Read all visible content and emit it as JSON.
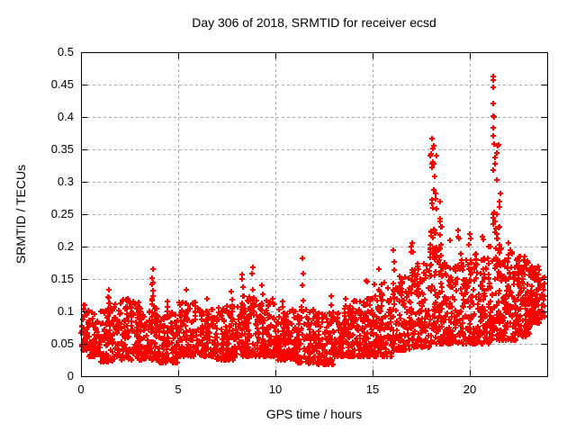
{
  "window_title": "Day 306 of 2018, SRMTID for receiver ecsd",
  "chart_data": {
    "type": "scatter",
    "title": "Day 306 of 2018, SRMTID for receiver ecsd",
    "xlabel": "GPS time / hours",
    "ylabel": "SRMTID / TECUs",
    "xlim": [
      0,
      24
    ],
    "ylim": [
      0,
      0.5
    ],
    "xticks": [
      {
        "v": 0,
        "label": "0"
      },
      {
        "v": 5,
        "label": "5"
      },
      {
        "v": 10,
        "label": "10"
      },
      {
        "v": 15,
        "label": "15"
      },
      {
        "v": 20,
        "label": "20"
      }
    ],
    "yticks": [
      {
        "v": 0,
        "label": "0"
      },
      {
        "v": 0.05,
        "label": "0.05"
      },
      {
        "v": 0.1,
        "label": "0.1"
      },
      {
        "v": 0.15,
        "label": "0.15"
      },
      {
        "v": 0.2,
        "label": "0.2"
      },
      {
        "v": 0.25,
        "label": "0.25"
      },
      {
        "v": 0.3,
        "label": "0.3"
      },
      {
        "v": 0.35,
        "label": "0.35"
      },
      {
        "v": 0.4,
        "label": "0.4"
      },
      {
        "v": 0.45,
        "label": "0.45"
      },
      {
        "v": 0.5,
        "label": "0.5"
      }
    ],
    "grid": true,
    "legend": "none",
    "marker": "plus",
    "marker_color": "#ff0000",
    "grid_color": "#ababab",
    "frame_color": "#000000",
    "background_color": "#ffffff",
    "seed": 3062018,
    "envelope": [
      {
        "x0": 0.0,
        "x1": 0.35,
        "lo": 0.04,
        "hi": 0.115,
        "n": 45
      },
      {
        "x0": 0.35,
        "x1": 1.0,
        "lo": 0.03,
        "hi": 0.1,
        "n": 70
      },
      {
        "x0": 1.0,
        "x1": 2.0,
        "lo": 0.022,
        "hi": 0.115,
        "n": 115
      },
      {
        "x0": 2.0,
        "x1": 3.0,
        "lo": 0.025,
        "hi": 0.12,
        "n": 115
      },
      {
        "x0": 3.0,
        "x1": 4.0,
        "lo": 0.025,
        "hi": 0.11,
        "n": 115
      },
      {
        "x0": 4.0,
        "x1": 5.0,
        "lo": 0.02,
        "hi": 0.1,
        "n": 115
      },
      {
        "x0": 5.0,
        "x1": 6.0,
        "lo": 0.03,
        "hi": 0.115,
        "n": 115
      },
      {
        "x0": 6.0,
        "x1": 7.0,
        "lo": 0.03,
        "hi": 0.105,
        "n": 115
      },
      {
        "x0": 7.0,
        "x1": 8.0,
        "lo": 0.025,
        "hi": 0.11,
        "n": 115
      },
      {
        "x0": 8.0,
        "x1": 9.0,
        "lo": 0.03,
        "hi": 0.125,
        "n": 115
      },
      {
        "x0": 9.0,
        "x1": 10.0,
        "lo": 0.03,
        "hi": 0.12,
        "n": 115
      },
      {
        "x0": 10.0,
        "x1": 11.0,
        "lo": 0.025,
        "hi": 0.105,
        "n": 115
      },
      {
        "x0": 11.0,
        "x1": 12.0,
        "lo": 0.02,
        "hi": 0.105,
        "n": 115
      },
      {
        "x0": 12.0,
        "x1": 13.0,
        "lo": 0.018,
        "hi": 0.1,
        "n": 115
      },
      {
        "x0": 13.0,
        "x1": 14.0,
        "lo": 0.03,
        "hi": 0.11,
        "n": 115
      },
      {
        "x0": 14.0,
        "x1": 15.0,
        "lo": 0.03,
        "hi": 0.12,
        "n": 115
      },
      {
        "x0": 15.0,
        "x1": 16.0,
        "lo": 0.03,
        "hi": 0.145,
        "n": 120
      },
      {
        "x0": 16.0,
        "x1": 17.0,
        "lo": 0.04,
        "hi": 0.155,
        "n": 120
      },
      {
        "x0": 17.0,
        "x1": 18.0,
        "lo": 0.045,
        "hi": 0.175,
        "n": 120
      },
      {
        "x0": 18.0,
        "x1": 18.6,
        "lo": 0.05,
        "hi": 0.2,
        "n": 80
      },
      {
        "x0": 18.6,
        "x1": 19.5,
        "lo": 0.05,
        "hi": 0.175,
        "n": 110
      },
      {
        "x0": 19.5,
        "x1": 20.5,
        "lo": 0.05,
        "hi": 0.19,
        "n": 125
      },
      {
        "x0": 20.5,
        "x1": 21.0,
        "lo": 0.05,
        "hi": 0.185,
        "n": 65
      },
      {
        "x0": 21.0,
        "x1": 21.7,
        "lo": 0.055,
        "hi": 0.2,
        "n": 95
      },
      {
        "x0": 21.7,
        "x1": 22.5,
        "lo": 0.055,
        "hi": 0.195,
        "n": 115
      },
      {
        "x0": 22.5,
        "x1": 23.1,
        "lo": 0.06,
        "hi": 0.185,
        "n": 105
      },
      {
        "x0": 23.1,
        "x1": 23.6,
        "lo": 0.08,
        "hi": 0.17,
        "n": 95
      },
      {
        "x0": 23.6,
        "x1": 23.9,
        "lo": 0.09,
        "hi": 0.16,
        "n": 25
      }
    ],
    "spikes": [
      {
        "x": 1.45,
        "w": 0.12,
        "y0": 0.09,
        "y1": 0.133,
        "n": 6
      },
      {
        "x": 2.4,
        "w": 0.12,
        "y0": 0.09,
        "y1": 0.12,
        "n": 5
      },
      {
        "x": 3.7,
        "w": 0.12,
        "y0": 0.1,
        "y1": 0.165,
        "n": 9
      },
      {
        "x": 4.45,
        "w": 0.1,
        "y0": 0.085,
        "y1": 0.115,
        "n": 5
      },
      {
        "x": 5.4,
        "w": 0.12,
        "y0": 0.09,
        "y1": 0.134,
        "n": 7
      },
      {
        "x": 6.5,
        "w": 0.1,
        "y0": 0.085,
        "y1": 0.12,
        "n": 5
      },
      {
        "x": 7.75,
        "w": 0.1,
        "y0": 0.09,
        "y1": 0.13,
        "n": 6
      },
      {
        "x": 8.3,
        "w": 0.12,
        "y0": 0.1,
        "y1": 0.157,
        "n": 8
      },
      {
        "x": 8.85,
        "w": 0.1,
        "y0": 0.1,
        "y1": 0.168,
        "n": 7
      },
      {
        "x": 9.3,
        "w": 0.1,
        "y0": 0.09,
        "y1": 0.14,
        "n": 6
      },
      {
        "x": 10.4,
        "w": 0.1,
        "y0": 0.08,
        "y1": 0.115,
        "n": 5
      },
      {
        "x": 11.4,
        "w": 0.1,
        "y0": 0.1,
        "y1": 0.182,
        "n": 8
      },
      {
        "x": 12.9,
        "w": 0.1,
        "y0": 0.08,
        "y1": 0.123,
        "n": 5
      },
      {
        "x": 13.6,
        "w": 0.1,
        "y0": 0.08,
        "y1": 0.12,
        "n": 5
      },
      {
        "x": 14.7,
        "w": 0.12,
        "y0": 0.09,
        "y1": 0.147,
        "n": 7
      },
      {
        "x": 15.35,
        "w": 0.1,
        "y0": 0.1,
        "y1": 0.165,
        "n": 6
      },
      {
        "x": 16.1,
        "w": 0.12,
        "y0": 0.11,
        "y1": 0.195,
        "n": 8
      },
      {
        "x": 17.05,
        "w": 0.1,
        "y0": 0.12,
        "y1": 0.205,
        "n": 6
      },
      {
        "x": 17.35,
        "w": 0.1,
        "y0": 0.12,
        "y1": 0.17,
        "n": 5
      },
      {
        "x": 18.15,
        "w": 0.35,
        "y0": 0.18,
        "y1": 0.355,
        "n": 38
      },
      {
        "x": 18.5,
        "w": 0.15,
        "y0": 0.15,
        "y1": 0.27,
        "n": 10
      },
      {
        "x": 19.0,
        "w": 0.1,
        "y0": 0.14,
        "y1": 0.21,
        "n": 7
      },
      {
        "x": 19.4,
        "w": 0.12,
        "y0": 0.15,
        "y1": 0.225,
        "n": 6
      },
      {
        "x": 20.0,
        "w": 0.15,
        "y0": 0.14,
        "y1": 0.22,
        "n": 8
      },
      {
        "x": 20.65,
        "w": 0.12,
        "y0": 0.14,
        "y1": 0.215,
        "n": 6
      },
      {
        "x": 21.25,
        "w": 0.1,
        "y0": 0.22,
        "y1": 0.4,
        "n": 10
      },
      {
        "x": 21.45,
        "w": 0.3,
        "y0": 0.17,
        "y1": 0.355,
        "n": 26
      },
      {
        "x": 22.0,
        "w": 0.15,
        "y0": 0.13,
        "y1": 0.205,
        "n": 8
      }
    ],
    "highlights": [
      [
        21.2,
        0.463
      ],
      [
        21.23,
        0.457
      ],
      [
        21.22,
        0.446
      ],
      [
        21.2,
        0.421
      ],
      [
        21.21,
        0.401
      ],
      [
        18.05,
        0.366
      ],
      [
        18.1,
        0.352
      ],
      [
        18.28,
        0.34
      ],
      [
        21.5,
        0.357
      ],
      [
        21.42,
        0.345
      ]
    ]
  }
}
